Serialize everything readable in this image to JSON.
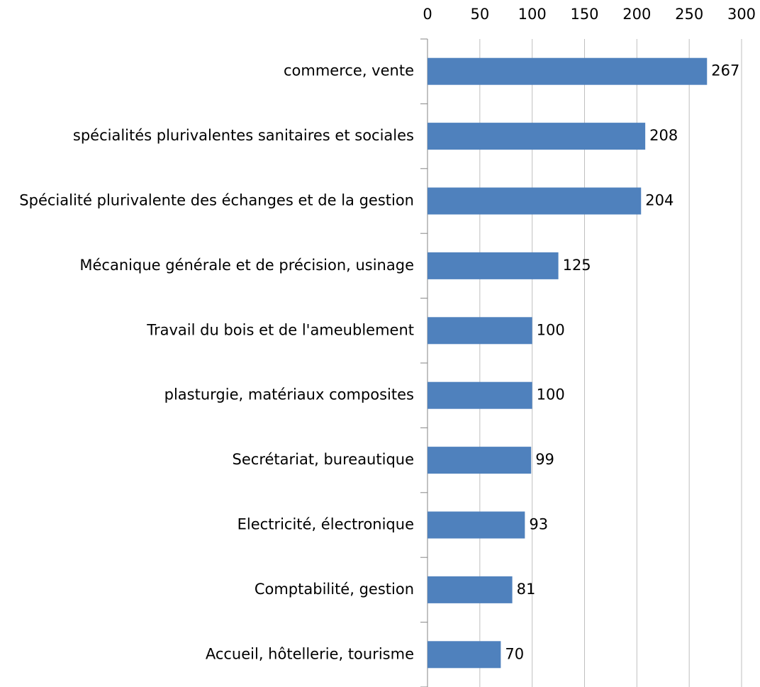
{
  "chart_data": {
    "type": "bar",
    "orientation": "horizontal",
    "categories": [
      "commerce, vente",
      "spécialités plurivalentes sanitaires et sociales",
      "Spécialité plurivalente des échanges et de la gestion",
      "Mécanique générale et de précision, usinage",
      "Travail du bois et de l'ameublement",
      "plasturgie, matériaux composites",
      "Secrétariat, bureautique",
      "Electricité, électronique",
      "Comptabilité, gestion",
      "Accueil, hôtellerie, tourisme"
    ],
    "values": [
      267,
      208,
      204,
      125,
      100,
      100,
      99,
      93,
      81,
      70
    ],
    "color": "#4f81bd",
    "xlim": [
      0,
      300
    ],
    "xticks": [
      0,
      50,
      100,
      150,
      200,
      250,
      300
    ],
    "grid": true
  }
}
